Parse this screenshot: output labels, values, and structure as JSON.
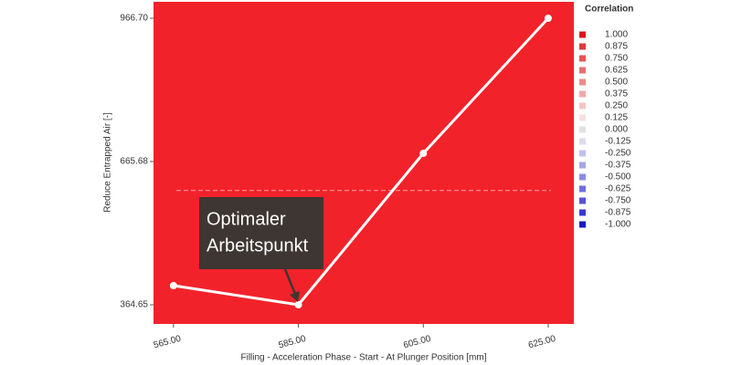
{
  "chart_data": {
    "type": "line",
    "x_label": "Filling - Acceleration Phase - Start - At Plunger Position [mm]",
    "y_label": "Reduce Entrapped Air [-]",
    "x": [
      565,
      585,
      605,
      625
    ],
    "series": [
      {
        "color": "#ffffff",
        "values": [
          404.9,
          364.65,
          682.9,
          966.7
        ]
      }
    ],
    "background": "#f2222a",
    "mean_line": 604.8,
    "xlim": [
      561.8,
      629.1
    ],
    "ylim": [
      324.4,
      1001.2
    ],
    "xticks": [
      {
        "value": 565,
        "label": "565.00"
      },
      {
        "value": 585,
        "label": "585.00"
      },
      {
        "value": 605,
        "label": "605.00"
      },
      {
        "value": 625,
        "label": "625.00"
      }
    ],
    "yticks": [
      364.65,
      665.68,
      {
        "value": 966.7,
        "label": "966.70"
      }
    ],
    "annotation": {
      "lines": [
        "Optimaler",
        "Arbeitspunkt"
      ]
    },
    "legend": {
      "title": "Correlation",
      "items": [
        {
          "value": 1,
          "label": "1.000",
          "color": "#d9181f"
        },
        {
          "value": 0.875,
          "label": "0.875",
          "color": "#dd3a3a"
        },
        {
          "value": 0.75,
          "label": "0.750",
          "color": "#e25555"
        },
        {
          "value": 0.625,
          "label": "0.625",
          "color": "#e67070"
        },
        {
          "value": 0.5,
          "label": "0.500",
          "color": "#eb8c8c"
        },
        {
          "value": 0.375,
          "label": "0.375",
          "color": "#f0a8a8"
        },
        {
          "value": 0.25,
          "label": "0.250",
          "color": "#f4c4c4"
        },
        {
          "value": 0.125,
          "label": "0.125",
          "color": "#f8dede"
        },
        {
          "value": 0,
          "label": "0.000",
          "color": "#e2e2e2"
        },
        {
          "value": -0.125,
          "label": "-0.125",
          "color": "#dadaf0"
        },
        {
          "value": -0.25,
          "label": "-0.250",
          "color": "#c0c0ee"
        },
        {
          "value": -0.375,
          "label": "-0.375",
          "color": "#a6a6e8"
        },
        {
          "value": -0.5,
          "label": "-0.500",
          "color": "#8c8ce2"
        },
        {
          "value": -0.625,
          "label": "-0.625",
          "color": "#7070dc"
        },
        {
          "value": -0.75,
          "label": "-0.750",
          "color": "#5454d4"
        },
        {
          "value": -0.875,
          "label": "-0.875",
          "color": "#3838cc"
        },
        {
          "value": -1,
          "label": "-1.000",
          "color": "#1a1ac4"
        }
      ]
    }
  }
}
